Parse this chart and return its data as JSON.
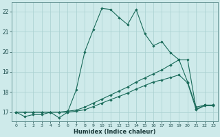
{
  "xlabel": "Humidex (Indice chaleur)",
  "background_color": "#ceeaea",
  "grid_color": "#a8d0d0",
  "line_color": "#1a6b5a",
  "xlim": [
    -0.5,
    23.5
  ],
  "ylim": [
    16.55,
    22.45
  ],
  "yticks": [
    17,
    18,
    19,
    20,
    21,
    22
  ],
  "xticks": [
    0,
    1,
    2,
    3,
    4,
    5,
    6,
    7,
    8,
    9,
    10,
    11,
    12,
    13,
    14,
    15,
    16,
    17,
    18,
    19,
    20,
    21,
    22,
    23
  ],
  "series": [
    {
      "x": [
        0,
        1,
        2,
        3,
        4,
        5,
        6,
        7,
        8,
        9,
        10,
        11,
        12,
        13,
        14,
        15,
        16,
        17,
        18,
        19,
        20,
        21,
        22,
        23
      ],
      "y": [
        17.0,
        16.78,
        16.88,
        16.88,
        17.0,
        16.72,
        17.0,
        18.1,
        20.0,
        21.1,
        22.15,
        22.1,
        21.7,
        21.35,
        22.1,
        20.9,
        20.3,
        20.5,
        19.95,
        19.6,
        18.5,
        17.25,
        17.35,
        17.35
      ]
    },
    {
      "x": [
        0,
        1,
        2,
        3,
        4,
        5,
        6,
        7,
        8,
        9,
        10,
        11,
        12,
        13,
        14,
        15,
        16,
        17,
        18,
        19,
        20,
        21,
        22,
        23
      ],
      "y": [
        17.0,
        17.0,
        17.0,
        17.0,
        17.0,
        17.0,
        17.05,
        17.1,
        17.25,
        17.45,
        17.65,
        17.85,
        18.05,
        18.25,
        18.5,
        18.7,
        18.9,
        19.1,
        19.35,
        19.6,
        19.6,
        17.15,
        17.35,
        17.35
      ]
    },
    {
      "x": [
        0,
        1,
        2,
        3,
        4,
        5,
        6,
        7,
        8,
        9,
        10,
        11,
        12,
        13,
        14,
        15,
        16,
        17,
        18,
        19,
        20,
        21,
        22,
        23
      ],
      "y": [
        17.0,
        17.0,
        17.0,
        17.0,
        17.0,
        17.0,
        17.0,
        17.05,
        17.12,
        17.28,
        17.45,
        17.62,
        17.78,
        17.95,
        18.15,
        18.32,
        18.5,
        18.6,
        18.72,
        18.85,
        18.45,
        17.12,
        17.32,
        17.32
      ]
    }
  ]
}
